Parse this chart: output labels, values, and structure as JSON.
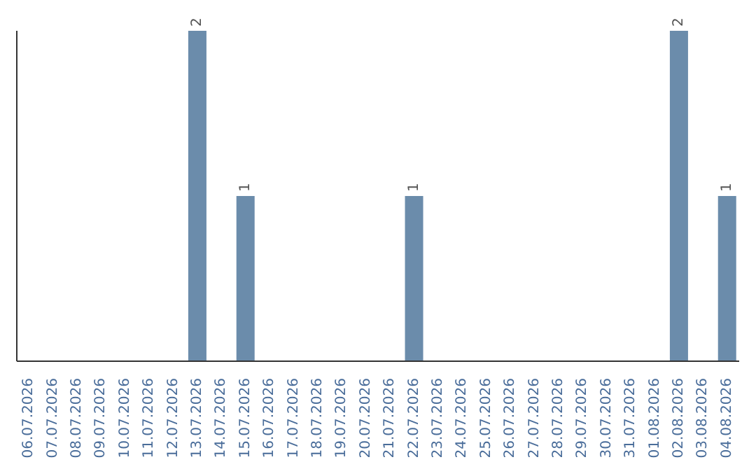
{
  "chart_data": {
    "type": "bar",
    "categories": [
      "06.07.2026",
      "07.07.2026",
      "08.07.2026",
      "09.07.2026",
      "10.07.2026",
      "11.07.2026",
      "12.07.2026",
      "13.07.2026",
      "14.07.2026",
      "15.07.2026",
      "16.07.2026",
      "17.07.2026",
      "18.07.2026",
      "19.07.2026",
      "20.07.2026",
      "21.07.2026",
      "22.07.2026",
      "23.07.2026",
      "24.07.2026",
      "25.07.2026",
      "26.07.2026",
      "27.07.2026",
      "28.07.2026",
      "29.07.2026",
      "30.07.2026",
      "31.07.2026",
      "01.08.2026",
      "02.08.2026",
      "03.08.2026",
      "04.08.2026"
    ],
    "values": [
      0,
      0,
      0,
      0,
      0,
      0,
      0,
      2,
      0,
      1,
      0,
      0,
      0,
      0,
      0,
      0,
      1,
      0,
      0,
      0,
      0,
      0,
      0,
      0,
      0,
      0,
      0,
      2,
      0,
      1
    ],
    "value_labels": [
      null,
      null,
      null,
      null,
      null,
      null,
      null,
      "2",
      null,
      "1",
      null,
      null,
      null,
      null,
      null,
      null,
      "1",
      null,
      null,
      null,
      null,
      null,
      null,
      null,
      null,
      null,
      null,
      "2",
      null,
      "1"
    ],
    "color": "#6b8cab",
    "grid": false,
    "legend": false
  }
}
